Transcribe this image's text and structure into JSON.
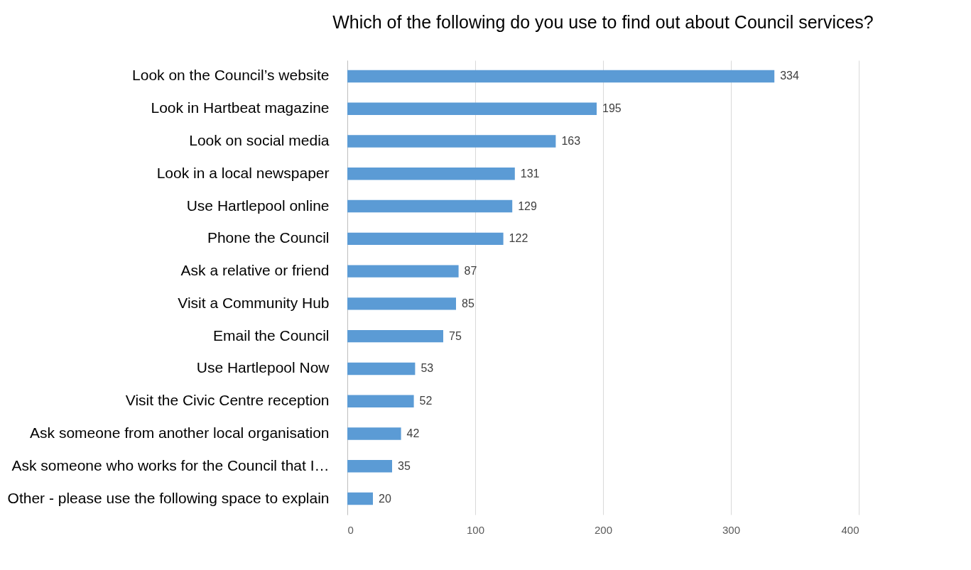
{
  "chart_data": {
    "type": "bar",
    "orientation": "horizontal",
    "title": "Which of the following do you use to find out about Council services?",
    "categories": [
      "Look on the Council’s website",
      "Look in Hartbeat magazine",
      "Look on social media",
      "Look in a local newspaper",
      "Use Hartlepool online",
      "Phone the Council",
      "Ask a relative or friend",
      "Visit a Community Hub",
      "Email the Council",
      "Use Hartlepool Now",
      "Visit the Civic Centre reception",
      "Ask someone from another local organisation",
      "Ask someone who works for the Council that I…",
      "Other - please use the following space to explain"
    ],
    "values": [
      334,
      195,
      163,
      131,
      129,
      122,
      87,
      85,
      75,
      53,
      52,
      42,
      35,
      20
    ],
    "color": "#5b9bd5",
    "xlim": [
      0,
      400
    ],
    "xticks": [
      0,
      100,
      200,
      300,
      400
    ],
    "grid": "x",
    "data_labels": true
  }
}
